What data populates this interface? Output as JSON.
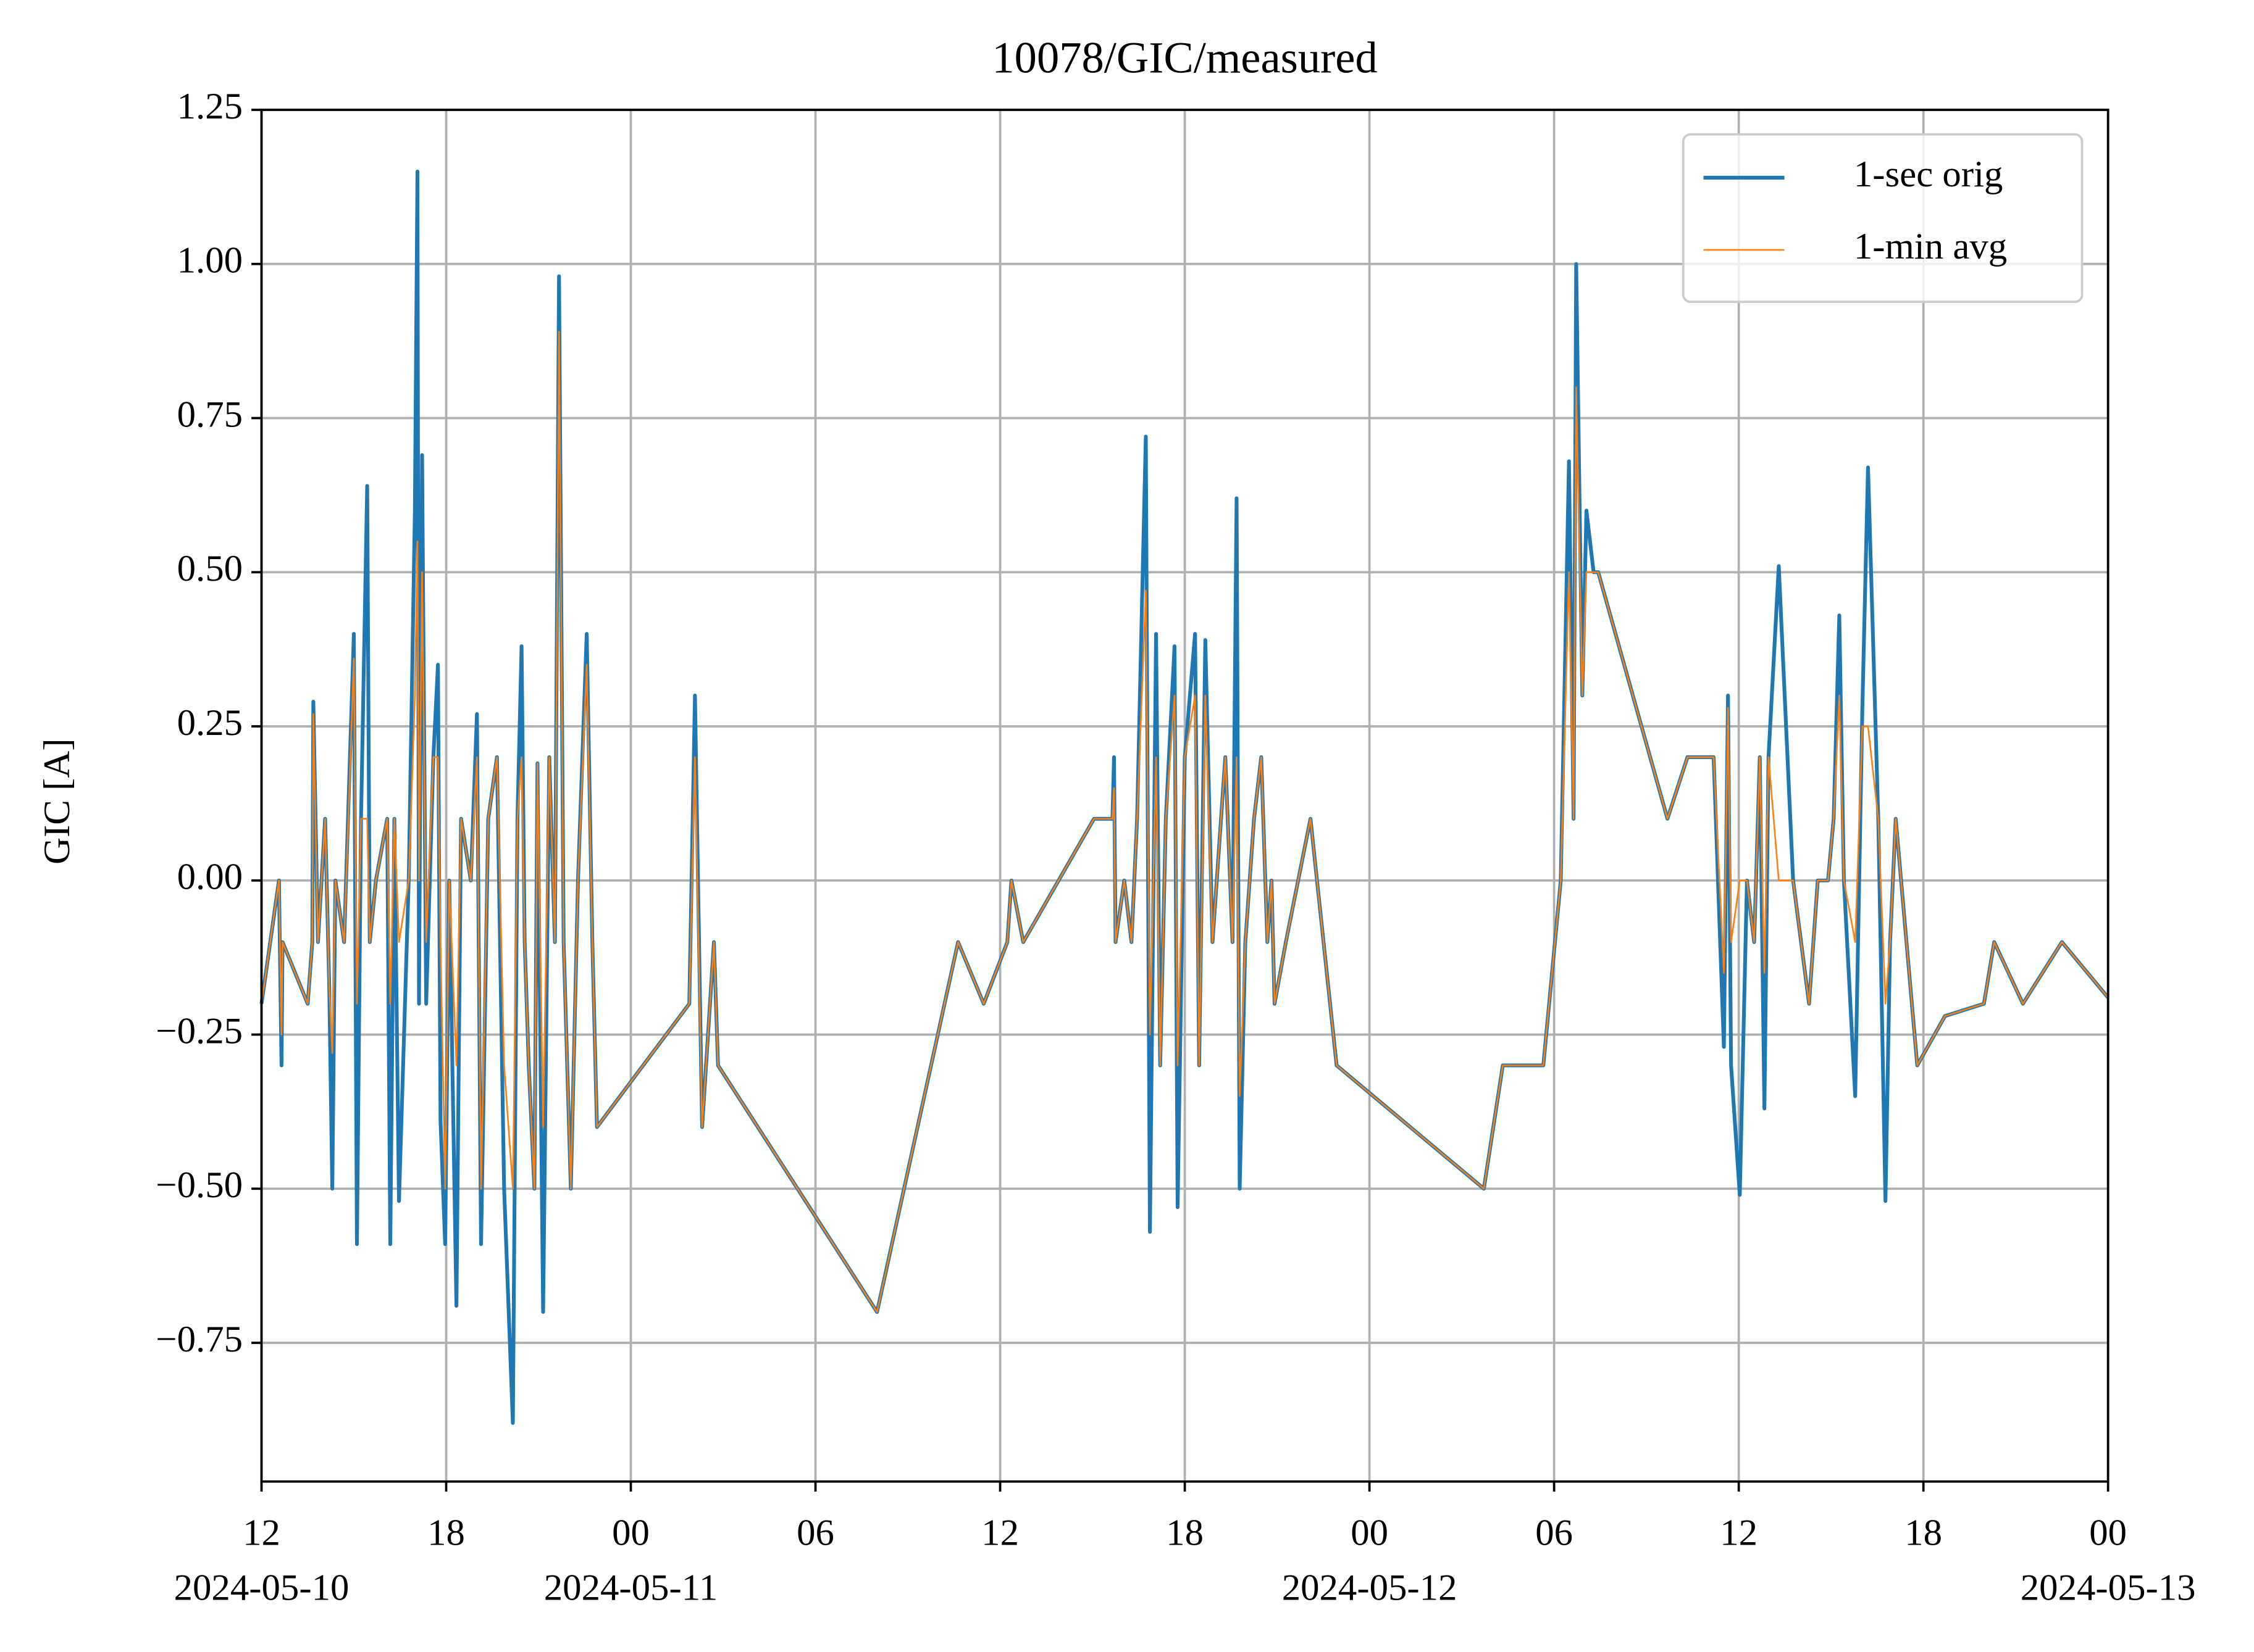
{
  "chart_data": {
    "type": "line",
    "title": "10078/GIC/measured",
    "y_label": "GIC [A]",
    "grid": true,
    "legend_loc": "upper right",
    "xlim": [
      "2024-05-10T12:00",
      "2024-05-13T00:00"
    ],
    "ylim": [
      -0.975,
      1.25
    ],
    "xticks": [
      {
        "value": "2024-05-10T12:00",
        "label": "12",
        "date": "2024-05-10"
      },
      {
        "value": "2024-05-10T18:00",
        "label": "18"
      },
      {
        "value": "2024-05-11T00:00",
        "label": "00",
        "date": "2024-05-11"
      },
      {
        "value": "2024-05-11T06:00",
        "label": "06"
      },
      {
        "value": "2024-05-11T12:00",
        "label": "12"
      },
      {
        "value": "2024-05-11T18:00",
        "label": "18"
      },
      {
        "value": "2024-05-12T00:00",
        "label": "00",
        "date": "2024-05-12"
      },
      {
        "value": "2024-05-12T06:00",
        "label": "06"
      },
      {
        "value": "2024-05-12T12:00",
        "label": "12"
      },
      {
        "value": "2024-05-12T18:00",
        "label": "18"
      },
      {
        "value": "2024-05-13T00:00",
        "label": "00",
        "date": "2024-05-13"
      }
    ],
    "yticks": [
      {
        "value": -0.75,
        "label": "−0.75"
      },
      {
        "value": -0.5,
        "label": "−0.50"
      },
      {
        "value": -0.25,
        "label": "−0.25"
      },
      {
        "value": 0,
        "label": "0.00"
      },
      0.25,
      {
        "value": 0.5,
        "label": "0.50"
      },
      0.75,
      {
        "value": 1,
        "label": "1.00"
      },
      1.25
    ],
    "x": [
      "2024-05-10T12:00",
      "2024-05-10T12:34",
      "2024-05-10T12:39",
      "2024-05-10T12:41",
      "2024-05-10T13:30",
      "2024-05-10T13:39",
      "2024-05-10T13:41",
      "2024-05-10T13:50",
      "2024-05-10T14:04",
      "2024-05-10T14:12",
      "2024-05-10T14:18",
      "2024-05-10T14:24",
      "2024-05-10T14:41",
      "2024-05-10T15:00",
      "2024-05-10T15:06",
      "2024-05-10T15:14",
      "2024-05-10T15:26",
      "2024-05-10T15:31",
      "2024-05-10T15:43",
      "2024-05-10T16:05",
      "2024-05-10T16:11",
      "2024-05-10T16:19",
      "2024-05-10T16:28",
      "2024-05-10T16:47",
      "2024-05-10T16:59",
      "2024-05-10T17:04",
      "2024-05-10T17:07",
      "2024-05-10T17:13",
      "2024-05-10T17:21",
      "2024-05-10T17:35",
      "2024-05-10T17:44",
      "2024-05-10T17:49",
      "2024-05-10T17:58",
      "2024-05-10T18:06",
      "2024-05-10T18:20",
      "2024-05-10T18:29",
      "2024-05-10T18:48",
      "2024-05-10T19:00",
      "2024-05-10T19:08",
      "2024-05-10T19:22",
      "2024-05-10T19:39",
      "2024-05-10T19:53",
      "2024-05-10T20:10",
      "2024-05-10T20:19",
      "2024-05-10T20:27",
      "2024-05-10T20:33",
      "2024-05-10T20:41",
      "2024-05-10T20:52",
      "2024-05-10T20:58",
      "2024-05-10T21:09",
      "2024-05-10T21:21",
      "2024-05-10T21:32",
      "2024-05-10T21:40",
      "2024-05-10T21:49",
      "2024-05-10T22:03",
      "2024-05-10T22:17",
      "2024-05-10T22:34",
      "2024-05-10T22:45",
      "2024-05-10T22:54",
      "2024-05-11T01:54",
      "2024-05-11T02:05",
      "2024-05-11T02:19",
      "2024-05-11T02:42",
      "2024-05-11T02:50",
      "2024-05-11T08:00",
      "2024-05-11T10:38",
      "2024-05-11T11:28",
      "2024-05-11T12:14",
      "2024-05-11T12:22",
      "2024-05-11T12:45",
      "2024-05-11T15:03",
      "2024-05-11T15:39",
      "2024-05-11T15:42",
      "2024-05-11T15:45",
      "2024-05-11T16:02",
      "2024-05-11T16:16",
      "2024-05-11T16:27",
      "2024-05-11T16:44",
      "2024-05-11T16:52",
      "2024-05-11T17:04",
      "2024-05-11T17:12",
      "2024-05-11T17:23",
      "2024-05-11T17:40",
      "2024-05-11T17:46",
      "2024-05-11T18:00",
      "2024-05-11T18:20",
      "2024-05-11T18:28",
      "2024-05-11T18:40",
      "2024-05-11T18:54",
      "2024-05-11T19:19",
      "2024-05-11T19:33",
      "2024-05-11T19:41",
      "2024-05-11T19:47",
      "2024-05-11T19:58",
      "2024-05-11T20:15",
      "2024-05-11T20:29",
      "2024-05-11T20:41",
      "2024-05-11T20:49",
      "2024-05-11T20:55",
      "2024-05-11T21:17",
      "2024-05-11T22:05",
      "2024-05-11T22:56",
      "2024-05-12T03:43",
      "2024-05-12T04:20",
      "2024-05-12T05:39",
      "2024-05-12T06:13",
      "2024-05-12T06:29",
      "2024-05-12T06:38",
      "2024-05-12T06:43",
      "2024-05-12T06:55",
      "2024-05-12T07:03",
      "2024-05-12T07:17",
      "2024-05-12T07:26",
      "2024-05-12T09:41",
      "2024-05-12T10:20",
      "2024-05-12T11:11",
      "2024-05-12T11:31",
      "2024-05-12T11:39",
      "2024-05-12T11:45",
      "2024-05-12T12:02",
      "2024-05-12T12:16",
      "2024-05-12T12:30",
      "2024-05-12T12:41",
      "2024-05-12T12:50",
      "2024-05-12T12:58",
      "2024-05-12T13:18",
      "2024-05-12T13:46",
      "2024-05-12T14:17",
      "2024-05-12T14:34",
      "2024-05-12T14:54",
      "2024-05-12T15:05",
      "2024-05-12T15:16",
      "2024-05-12T15:25",
      "2024-05-12T15:47",
      "2024-05-12T16:01",
      "2024-05-12T16:12",
      "2024-05-12T16:32",
      "2024-05-12T16:46",
      "2024-05-12T16:55",
      "2024-05-12T17:06",
      "2024-05-12T17:48",
      "2024-05-12T18:42",
      "2024-05-12T19:58",
      "2024-05-12T20:18",
      "2024-05-12T21:14",
      "2024-05-12T22:30",
      "2024-05-13T00:00"
    ],
    "series": [
      {
        "name": "1-sec orig",
        "color": "#1f77b4",
        "values": [
          -0.2,
          0,
          -0.3,
          -0.1,
          -0.2,
          -0.1,
          0.29,
          -0.1,
          0.1,
          -0.17,
          -0.5,
          0,
          -0.1,
          0.4,
          -0.59,
          0.1,
          0.64,
          -0.1,
          0,
          0.1,
          -0.59,
          0.1,
          -0.52,
          0,
          0.6,
          1.15,
          -0.2,
          0.69,
          -0.2,
          0.2,
          0.35,
          -0.39,
          -0.59,
          0,
          -0.69,
          0.1,
          0,
          0.27,
          -0.59,
          0.1,
          0.2,
          -0.5,
          -0.88,
          0.1,
          0.38,
          -0.1,
          -0.3,
          -0.5,
          0.19,
          -0.7,
          0.2,
          -0.1,
          0.98,
          -0.1,
          -0.5,
          0,
          0.4,
          -0.1,
          -0.4,
          -0.2,
          0.3,
          -0.4,
          -0.1,
          -0.3,
          -0.7,
          -0.1,
          -0.2,
          -0.1,
          0,
          -0.1,
          0.1,
          0.1,
          0.2,
          -0.1,
          0,
          -0.1,
          0.1,
          0.72,
          -0.57,
          0.4,
          -0.3,
          0.1,
          0.38,
          -0.53,
          0.2,
          0.4,
          -0.3,
          0.39,
          -0.1,
          0.2,
          -0.1,
          0.62,
          -0.5,
          -0.1,
          0.1,
          0.2,
          -0.1,
          0,
          -0.2,
          -0.1,
          0.1,
          -0.3,
          -0.5,
          -0.3,
          -0.3,
          0,
          0.68,
          0.1,
          1.0,
          0.3,
          0.6,
          0.5,
          0.5,
          0.1,
          0.2,
          0.2,
          -0.27,
          0.3,
          -0.3,
          -0.51,
          0,
          -0.1,
          0.2,
          -0.37,
          0.2,
          0.51,
          0,
          -0.2,
          0,
          0,
          0.1,
          0.43,
          0,
          -0.35,
          0.28,
          0.67,
          0.1,
          -0.52,
          -0.1,
          0.1,
          -0.3,
          -0.22,
          -0.2,
          -0.1,
          -0.2,
          -0.1,
          -0.19
        ]
      },
      {
        "name": "1-min avg",
        "color": "#ff7f0e",
        "values": [
          -0.2,
          0,
          -0.25,
          -0.1,
          -0.2,
          -0.1,
          0.27,
          -0.1,
          0.1,
          -0.17,
          -0.28,
          0,
          -0.1,
          0.36,
          -0.2,
          0.1,
          0.1,
          -0.1,
          0,
          0.1,
          -0.2,
          0.1,
          -0.1,
          0,
          0.3,
          0.55,
          0,
          0.5,
          -0.1,
          0.2,
          0.2,
          -0.1,
          -0.5,
          0,
          -0.3,
          0.1,
          0,
          0.2,
          -0.5,
          0.1,
          0.2,
          -0.3,
          -0.5,
          0.1,
          0.2,
          -0.1,
          -0.3,
          -0.5,
          0.19,
          -0.4,
          0.2,
          -0.1,
          0.89,
          -0.1,
          -0.5,
          0,
          0.35,
          -0.1,
          -0.4,
          -0.2,
          0.2,
          -0.4,
          -0.1,
          -0.3,
          -0.7,
          -0.1,
          -0.2,
          -0.1,
          0,
          -0.1,
          0.1,
          0.1,
          0.15,
          -0.1,
          0,
          -0.1,
          0.1,
          0.47,
          -0.25,
          0.2,
          -0.3,
          0.1,
          0.3,
          -0.3,
          0.2,
          0.3,
          -0.3,
          0.3,
          -0.1,
          0.2,
          -0.1,
          0.2,
          -0.35,
          -0.1,
          0.1,
          0.2,
          -0.1,
          0,
          -0.2,
          -0.1,
          0.1,
          -0.3,
          -0.5,
          -0.3,
          -0.3,
          0,
          0.5,
          0.1,
          0.8,
          0.3,
          0.5,
          0.5,
          0.5,
          0.1,
          0.2,
          0.2,
          -0.15,
          0.28,
          -0.1,
          0,
          0,
          -0.1,
          0.2,
          -0.15,
          0.2,
          0,
          0,
          -0.2,
          0,
          0,
          0.1,
          0.3,
          0,
          -0.1,
          0.25,
          0.25,
          0.1,
          -0.2,
          -0.1,
          0.1,
          -0.3,
          -0.22,
          -0.2,
          -0.1,
          -0.2,
          -0.1,
          -0.19
        ]
      }
    ]
  }
}
